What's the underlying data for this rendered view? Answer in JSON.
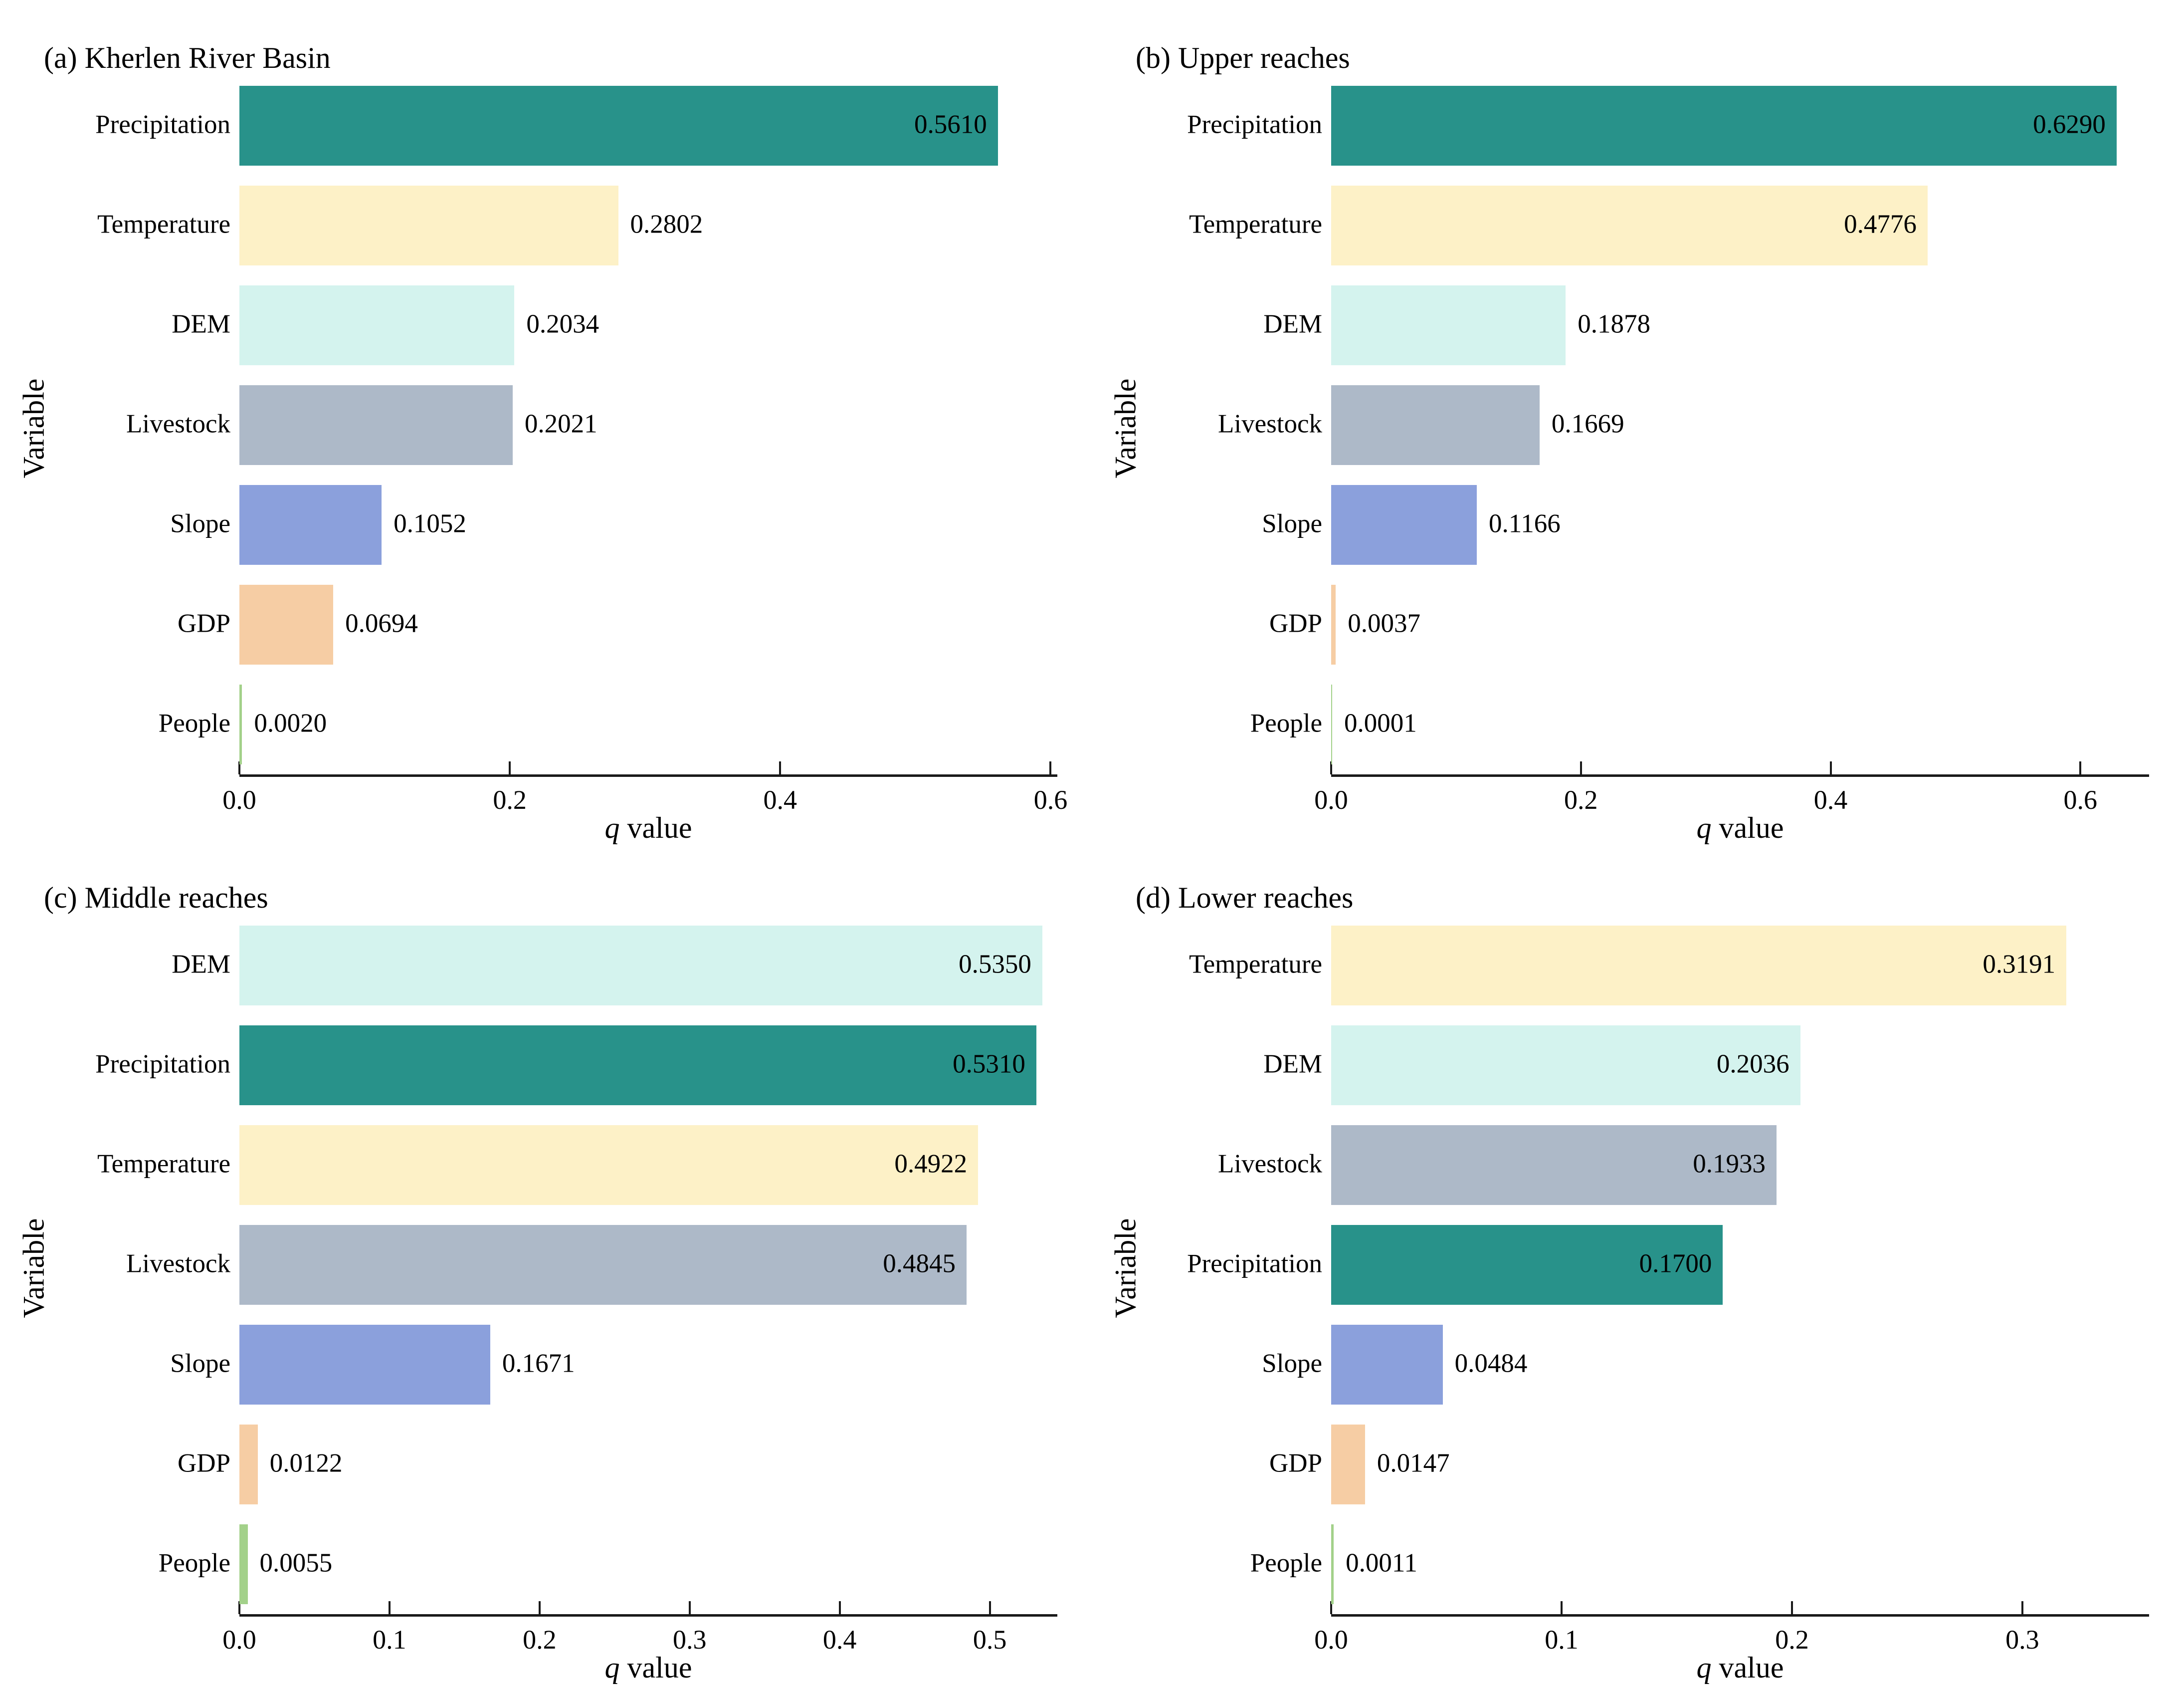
{
  "variable_colors": {
    "Precipitation": "#28928A",
    "Temperature": "#FDF1C7",
    "DEM": "#D4F3EE",
    "Livestock": "#ADB9C8",
    "Slope": "#8BA0DC",
    "GDP": "#F6CDA4",
    "People": "#A3D18A"
  },
  "chart_data": [
    {
      "type": "bar",
      "orientation": "horizontal",
      "title": "(a) Kherlen River Basin",
      "ylabel": "Variable",
      "xlabel": "q value",
      "xlabel_italic": "q",
      "xlabel_rest": " value",
      "categories": [
        "Precipitation",
        "Temperature",
        "DEM",
        "Livestock",
        "Slope",
        "GDP",
        "People"
      ],
      "values": [
        0.561,
        0.2802,
        0.2034,
        0.2021,
        0.1052,
        0.0694,
        0.002
      ],
      "value_labels": [
        "0.5610",
        "0.2802",
        "0.2034",
        "0.2021",
        "0.1052",
        "0.0694",
        "0.0020"
      ],
      "labels_inside": [
        true,
        false,
        false,
        false,
        false,
        false,
        false
      ],
      "xlim": [
        0,
        0.605
      ],
      "x_ticks": [
        0.0,
        0.2,
        0.4,
        0.6
      ],
      "x_tick_labels": [
        "0.0",
        "0.2",
        "0.4",
        "0.6"
      ],
      "grid": false,
      "legend": false
    },
    {
      "type": "bar",
      "orientation": "horizontal",
      "title": "(b) Upper reaches",
      "ylabel": "Variable",
      "xlabel": "q value",
      "xlabel_italic": "q",
      "xlabel_rest": " value",
      "categories": [
        "Precipitation",
        "Temperature",
        "DEM",
        "Livestock",
        "Slope",
        "GDP",
        "People"
      ],
      "values": [
        0.629,
        0.4776,
        0.1878,
        0.1669,
        0.1166,
        0.0037,
        0.0001
      ],
      "value_labels": [
        "0.6290",
        "0.4776",
        "0.1878",
        "0.1669",
        "0.1166",
        "0.0037",
        "0.0001"
      ],
      "labels_inside": [
        true,
        true,
        false,
        false,
        false,
        false,
        false
      ],
      "xlim": [
        0,
        0.655
      ],
      "x_ticks": [
        0.0,
        0.2,
        0.4,
        0.6
      ],
      "x_tick_labels": [
        "0.0",
        "0.2",
        "0.4",
        "0.6"
      ],
      "grid": false,
      "legend": false
    },
    {
      "type": "bar",
      "orientation": "horizontal",
      "title": "(c) Middle reaches",
      "ylabel": "Variable",
      "xlabel": "q value",
      "xlabel_italic": "q",
      "xlabel_rest": " value",
      "categories": [
        "DEM",
        "Precipitation",
        "Temperature",
        "Livestock",
        "Slope",
        "GDP",
        "People"
      ],
      "values": [
        0.535,
        0.531,
        0.4922,
        0.4845,
        0.1671,
        0.0122,
        0.0055
      ],
      "value_labels": [
        "0.5350",
        "0.5310",
        "0.4922",
        "0.4845",
        "0.1671",
        "0.0122",
        "0.0055"
      ],
      "labels_inside": [
        true,
        true,
        true,
        true,
        false,
        false,
        false
      ],
      "xlim": [
        0,
        0.545
      ],
      "x_ticks": [
        0.0,
        0.1,
        0.2,
        0.3,
        0.4,
        0.5
      ],
      "x_tick_labels": [
        "0.0",
        "0.1",
        "0.2",
        "0.3",
        "0.4",
        "0.5"
      ],
      "grid": false,
      "legend": false
    },
    {
      "type": "bar",
      "orientation": "horizontal",
      "title": "(d) Lower reaches",
      "ylabel": "Variable",
      "xlabel": "q value",
      "xlabel_italic": "q",
      "xlabel_rest": " value",
      "categories": [
        "Temperature",
        "DEM",
        "Livestock",
        "Precipitation",
        "Slope",
        "GDP",
        "People"
      ],
      "values": [
        0.3191,
        0.2036,
        0.1933,
        0.17,
        0.0484,
        0.0147,
        0.0011
      ],
      "value_labels": [
        "0.3191",
        "0.2036",
        "0.1933",
        "0.1700",
        "0.0484",
        "0.0147",
        "0.0011"
      ],
      "labels_inside": [
        true,
        true,
        true,
        true,
        false,
        false,
        false
      ],
      "xlim": [
        0,
        0.355
      ],
      "x_ticks": [
        0.0,
        0.1,
        0.2,
        0.3
      ],
      "x_tick_labels": [
        "0.0",
        "0.1",
        "0.2",
        "0.3"
      ],
      "grid": false,
      "legend": false
    }
  ]
}
